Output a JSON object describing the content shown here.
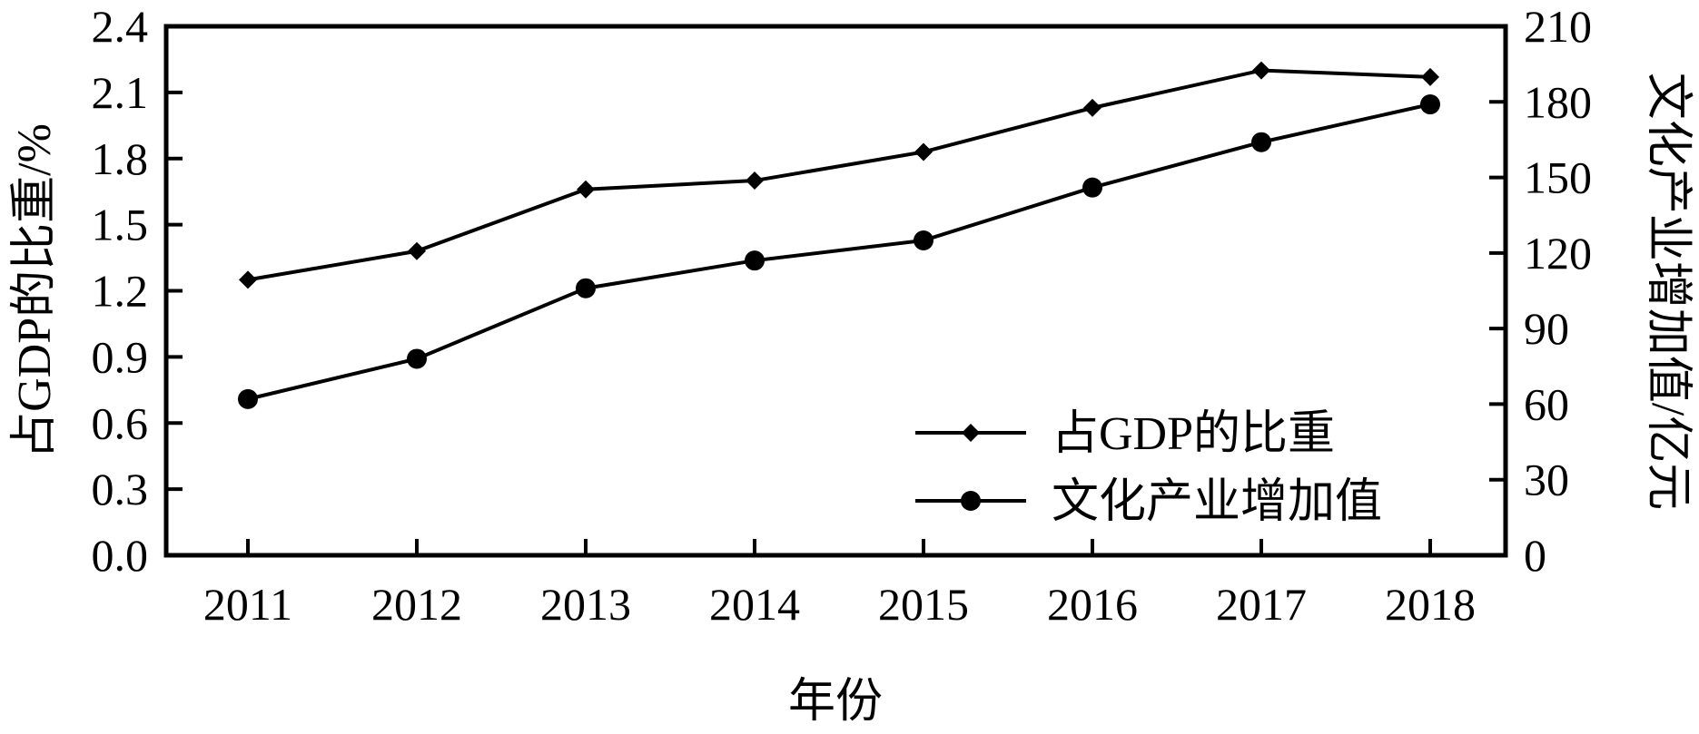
{
  "chart_data": {
    "type": "line",
    "categories": [
      "2011",
      "2012",
      "2013",
      "2014",
      "2015",
      "2016",
      "2017",
      "2018"
    ],
    "xlabel": "年份",
    "ylabel_left": "占GDP的比重/%",
    "ylabel_right": "文化产业增加值/亿元",
    "ylim_left": [
      0,
      2.4
    ],
    "ylim_right": [
      0,
      210
    ],
    "yticks_left": [
      "0.0",
      "0.3",
      "0.6",
      "0.9",
      "1.2",
      "1.5",
      "1.8",
      "2.1",
      "2.4"
    ],
    "yticks_right": [
      "0",
      "30",
      "60",
      "90",
      "120",
      "150",
      "180",
      "210"
    ],
    "grid": false,
    "legend_position": "bottom-right",
    "series": [
      {
        "name": "占GDP的比重",
        "axis": "left",
        "marker": "diamond",
        "values": [
          1.25,
          1.38,
          1.66,
          1.7,
          1.83,
          2.03,
          2.2,
          2.17
        ]
      },
      {
        "name": "文化产业增加值",
        "axis": "right",
        "marker": "circle",
        "values": [
          62,
          78,
          106,
          117,
          125,
          146,
          164,
          179
        ]
      }
    ]
  }
}
